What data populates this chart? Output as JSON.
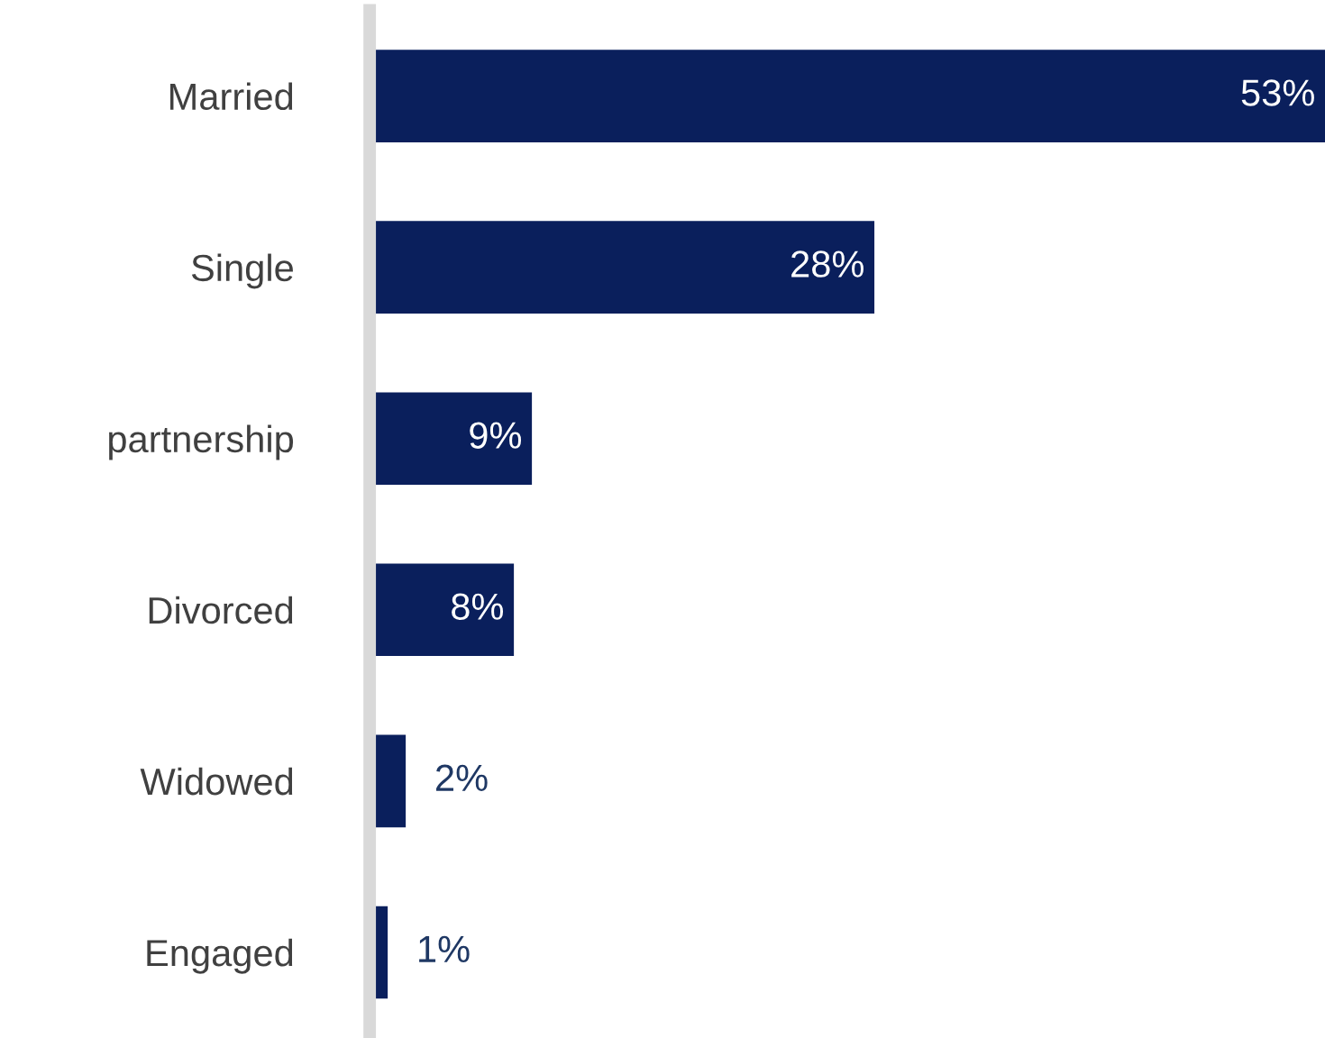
{
  "chart_data": {
    "type": "bar",
    "orientation": "horizontal",
    "categories": [
      "Married",
      "Single",
      "partnership",
      "Divorced",
      "Widowed",
      "Engaged"
    ],
    "values": [
      53,
      28,
      9,
      8,
      2,
      1
    ],
    "value_labels": [
      "53%",
      "28%",
      "9%",
      "8%",
      "2%",
      "1%"
    ],
    "color": "#0a1f5c",
    "grid": false,
    "legend": false
  }
}
